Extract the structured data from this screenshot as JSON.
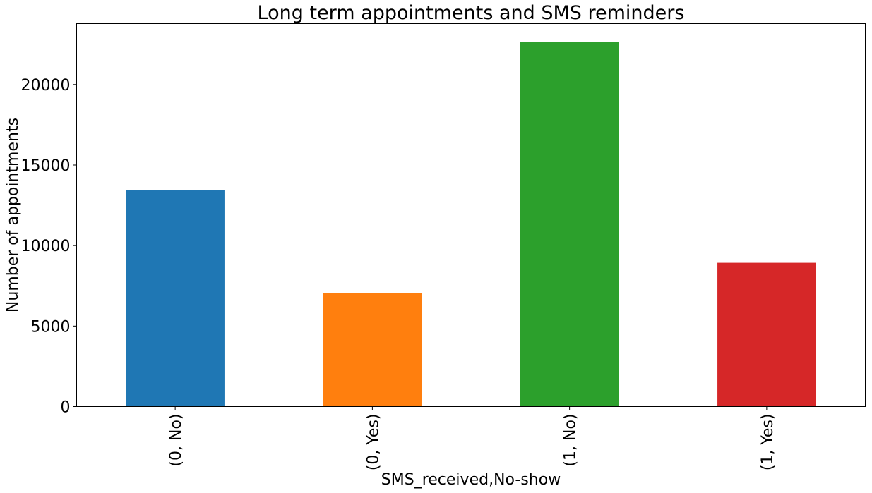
{
  "chart_data": {
    "type": "bar",
    "title": "Long term appointments and SMS reminders",
    "xlabel": "SMS_received,No-show",
    "ylabel": "Number of appointments",
    "categories": [
      "(0, No)",
      "(0, Yes)",
      "(1, No)",
      "(1, Yes)"
    ],
    "values": [
      13450,
      7050,
      22650,
      8930
    ],
    "colors": [
      "#1f77b4",
      "#ff7f0e",
      "#2ca02c",
      "#d62728"
    ],
    "ylim": [
      0,
      23780
    ],
    "yticks": [
      0,
      5000,
      10000,
      15000,
      20000
    ],
    "grid": false,
    "legend": "none"
  }
}
